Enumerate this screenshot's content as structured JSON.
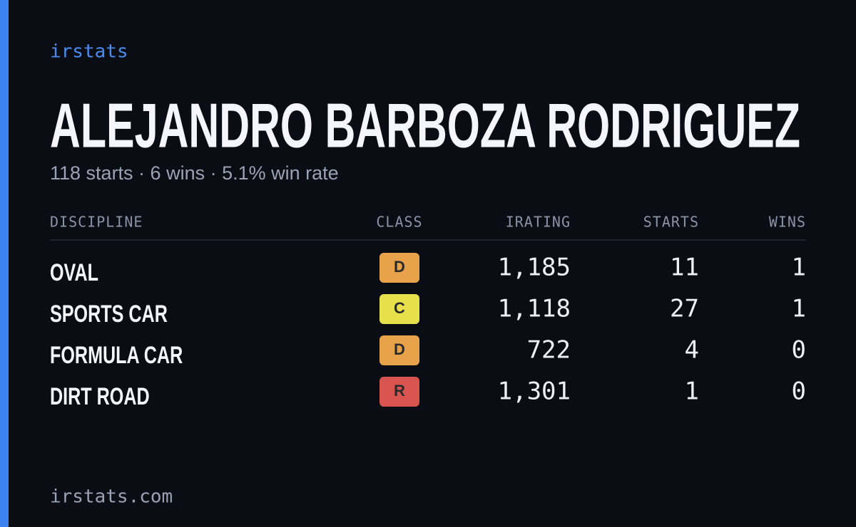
{
  "brand": "irstats",
  "driver": {
    "name": "ALEJANDRO BARBOZA RODRIGUEZ",
    "summary": "118 starts · 6 wins · 5.1% win rate"
  },
  "table": {
    "headers": [
      "DISCIPLINE",
      "CLASS",
      "IRATING",
      "STARTS",
      "WINS"
    ],
    "rows": [
      {
        "discipline": "OVAL",
        "class": "D",
        "class_color": "#e8a24a",
        "irating": "1,185",
        "starts": "11",
        "wins": "1"
      },
      {
        "discipline": "SPORTS CAR",
        "class": "C",
        "class_color": "#e8e04a",
        "irating": "1,118",
        "starts": "27",
        "wins": "1"
      },
      {
        "discipline": "FORMULA CAR",
        "class": "D",
        "class_color": "#e8a24a",
        "irating": "722",
        "starts": "4",
        "wins": "0"
      },
      {
        "discipline": "DIRT ROAD",
        "class": "R",
        "class_color": "#d9534f",
        "irating": "1,301",
        "starts": "1",
        "wins": "0"
      }
    ]
  },
  "footer": "irstats.com"
}
